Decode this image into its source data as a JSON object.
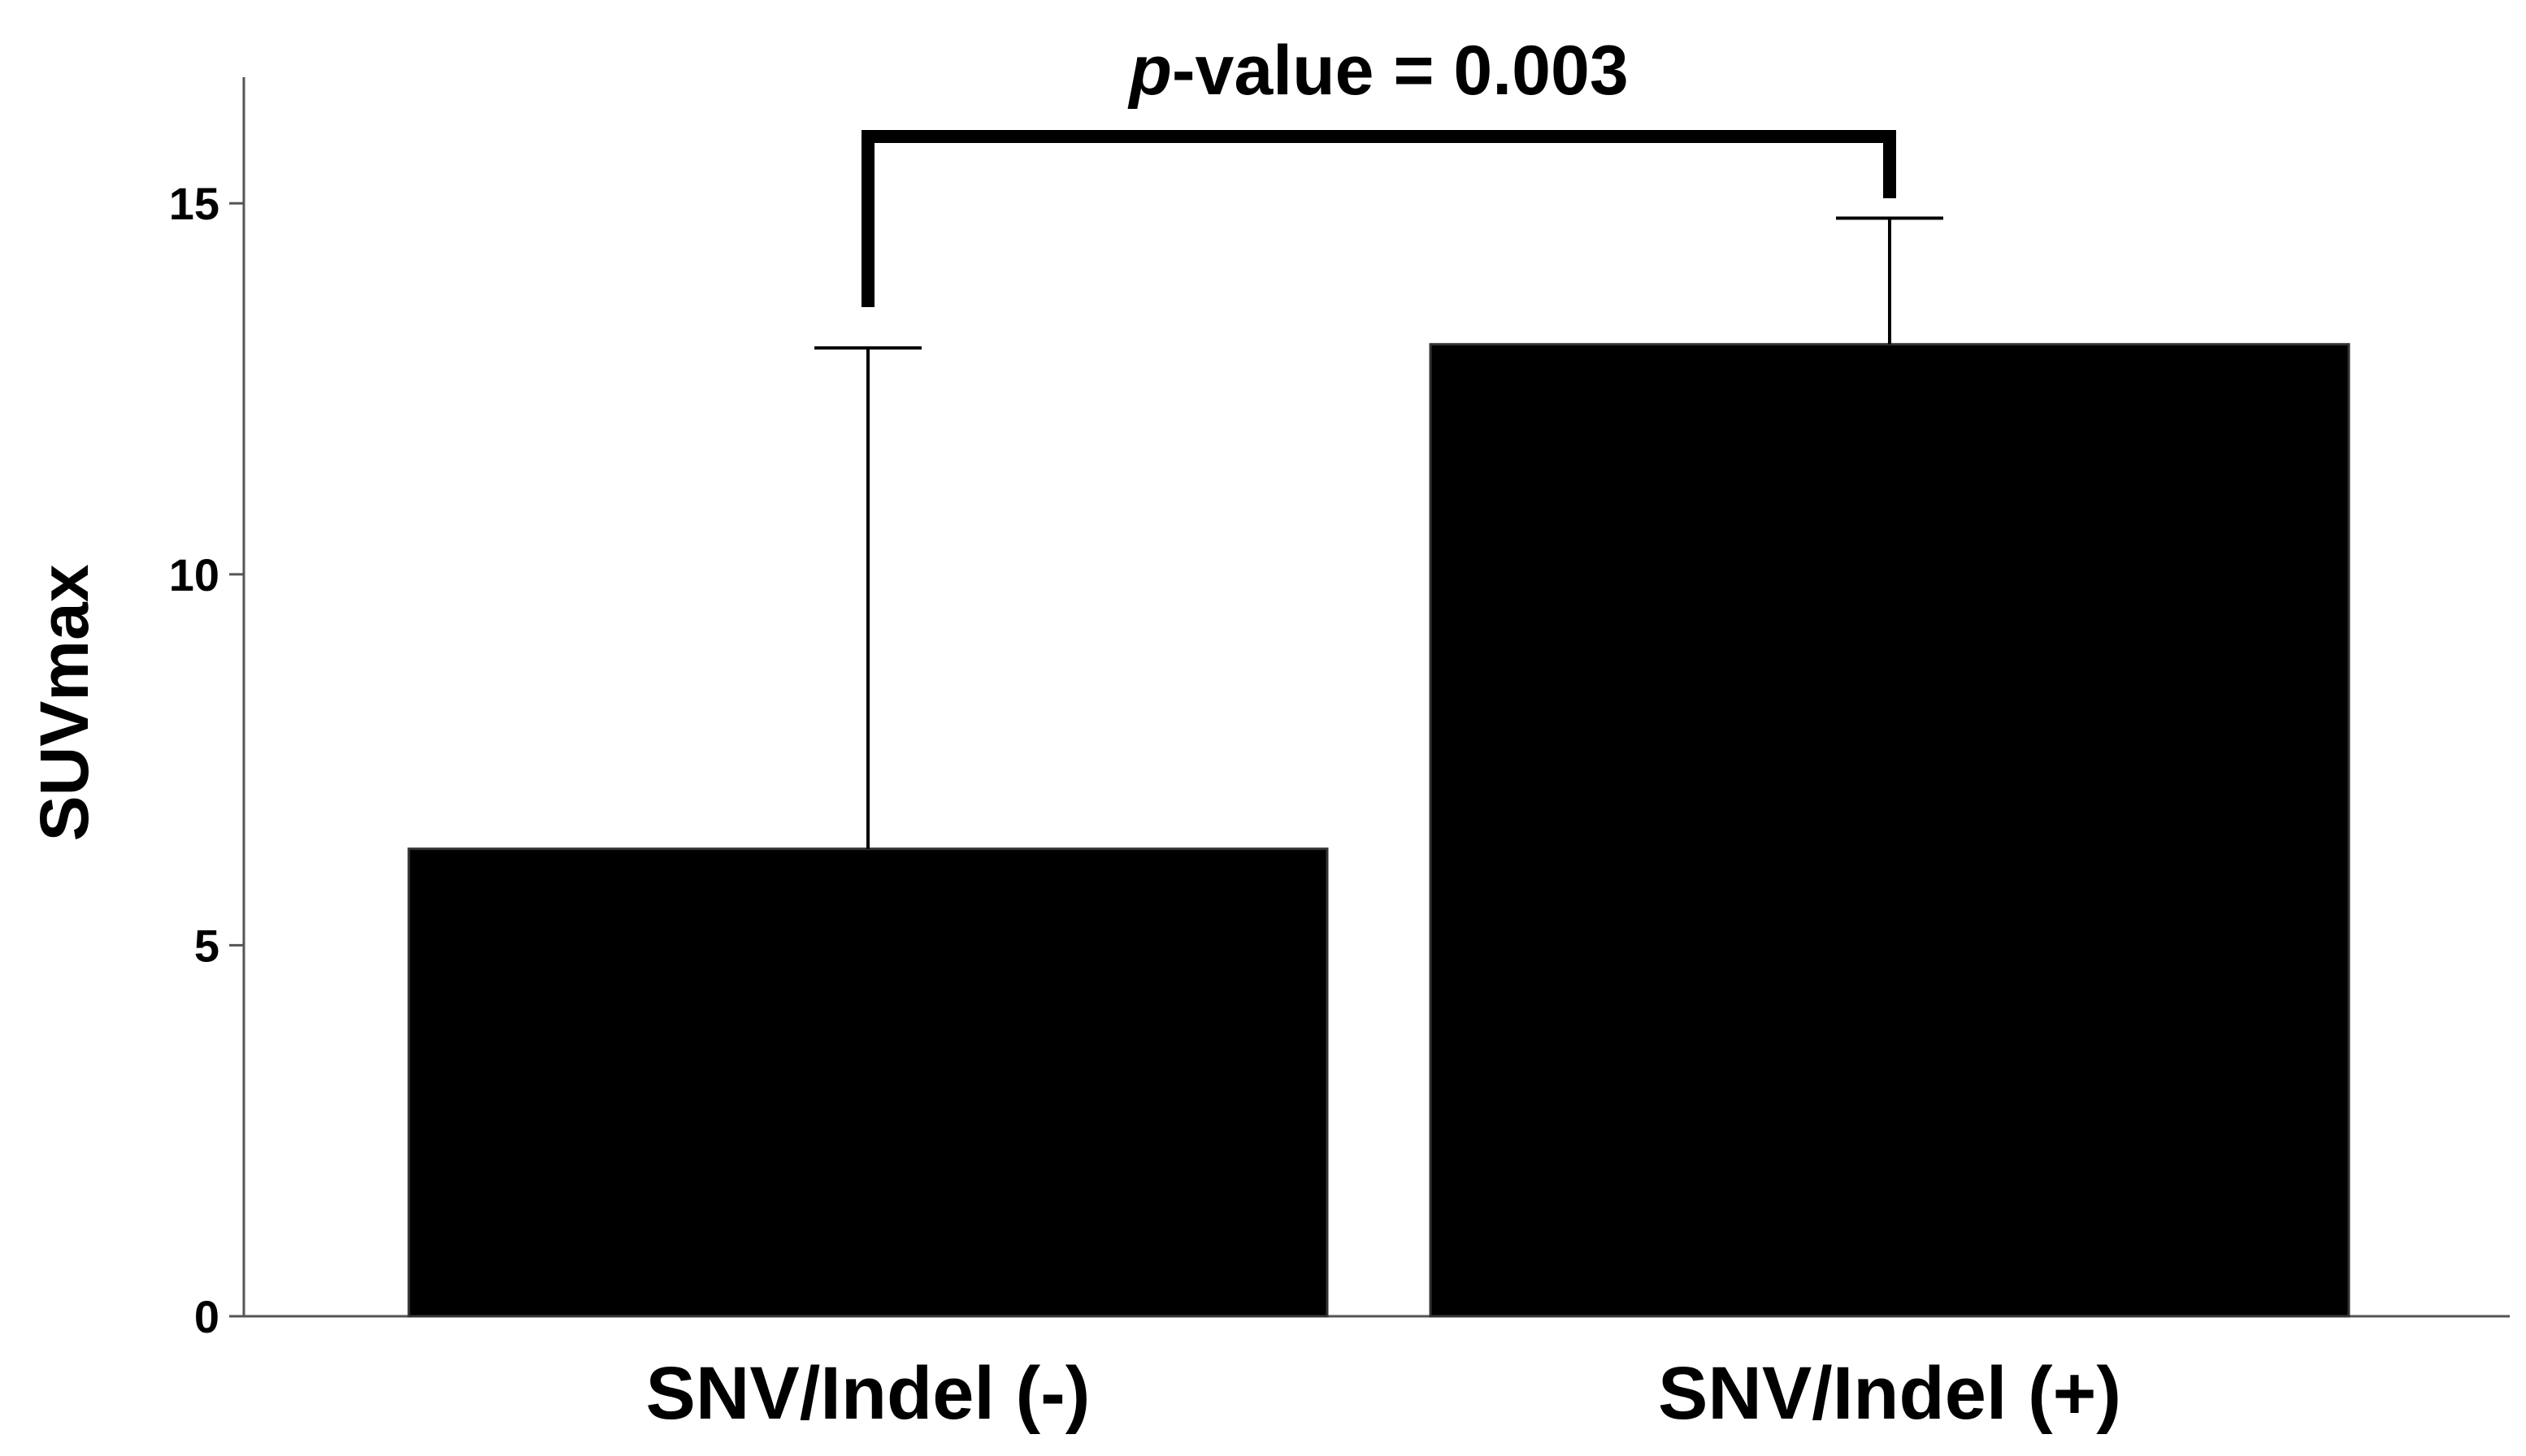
{
  "chart_data": {
    "type": "bar",
    "title": "",
    "xlabel": "",
    "ylabel": "SUVmax",
    "categories": [
      "SNV/Indel (-)",
      "SNV/Indel (+)"
    ],
    "values": [
      6.3,
      13.1
    ],
    "error_upper": [
      13.05,
      14.8
    ],
    "ylim": [
      0,
      16.7
    ],
    "yticks": [
      0,
      5,
      10,
      15
    ],
    "ytick_labels": [
      "0",
      "5",
      "10",
      "15"
    ],
    "grid": false,
    "legend": "none",
    "bar_color": "#000000",
    "annotation": {
      "p_symbol": "p",
      "text": "-value = 0.003",
      "between": [
        0,
        1
      ]
    }
  }
}
